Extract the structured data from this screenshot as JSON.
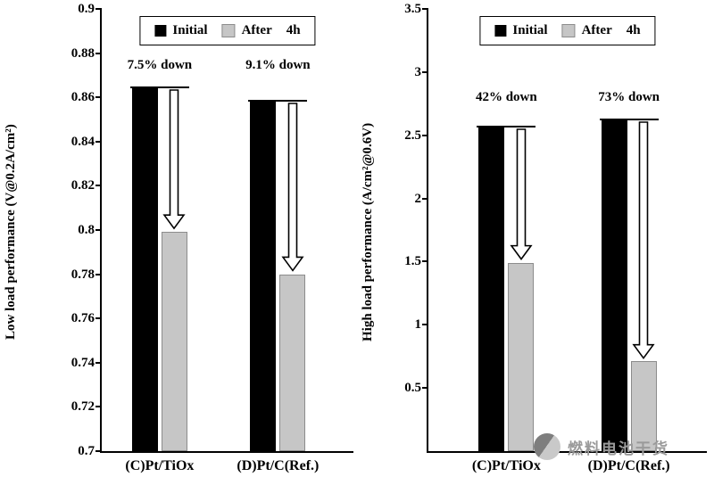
{
  "watermark": {
    "text": "燃料电池干货"
  },
  "chart_data": [
    {
      "type": "bar",
      "title": "",
      "xlabel": "",
      "ylabel": "Low load performance (V@0.2A/cm²)",
      "ylim": [
        0.7,
        0.9
      ],
      "yticks": [
        "0.9",
        "0.88",
        "0.86",
        "0.84",
        "0.82",
        "0.8",
        "0.78",
        "0.76",
        "0.74",
        "0.72",
        "0.7"
      ],
      "categories": [
        "(C)Pt/TiOx",
        "(D)Pt/C(Ref.)"
      ],
      "series": [
        {
          "name": "Initial",
          "color": "#000000",
          "values": [
            0.864,
            0.858
          ]
        },
        {
          "name": "After 4h",
          "color": "#c6c6c6",
          "values": [
            0.799,
            0.78
          ]
        }
      ],
      "annotations": [
        "7.5% down",
        "9.1% down"
      ],
      "legend": [
        {
          "color": "#000000",
          "label": "Initial"
        },
        {
          "color": "#c6c6c6",
          "label": "After"
        },
        {
          "color": null,
          "label": "4h"
        }
      ],
      "legend_position": "top",
      "grid": false
    },
    {
      "type": "bar",
      "title": "",
      "xlabel": "",
      "ylabel": "High load performance (A/cm²@0.6V)",
      "ylim": [
        0,
        3.5
      ],
      "yticks": [
        "3.5",
        "3",
        "2.5",
        "2",
        "1.5",
        "1",
        "0.5"
      ],
      "categories": [
        "(C)Pt/TiOx",
        "(D)Pt/C(Ref.)"
      ],
      "series": [
        {
          "name": "Initial",
          "color": "#000000",
          "values": [
            2.56,
            2.62
          ]
        },
        {
          "name": "After 4h",
          "color": "#c6c6c6",
          "values": [
            1.49,
            0.71
          ]
        }
      ],
      "annotations": [
        "42% down",
        "73% down"
      ],
      "legend": [
        {
          "color": "#000000",
          "label": "Initial"
        },
        {
          "color": "#c6c6c6",
          "label": "After"
        },
        {
          "color": null,
          "label": "4h"
        }
      ],
      "legend_position": "top",
      "grid": false
    }
  ]
}
